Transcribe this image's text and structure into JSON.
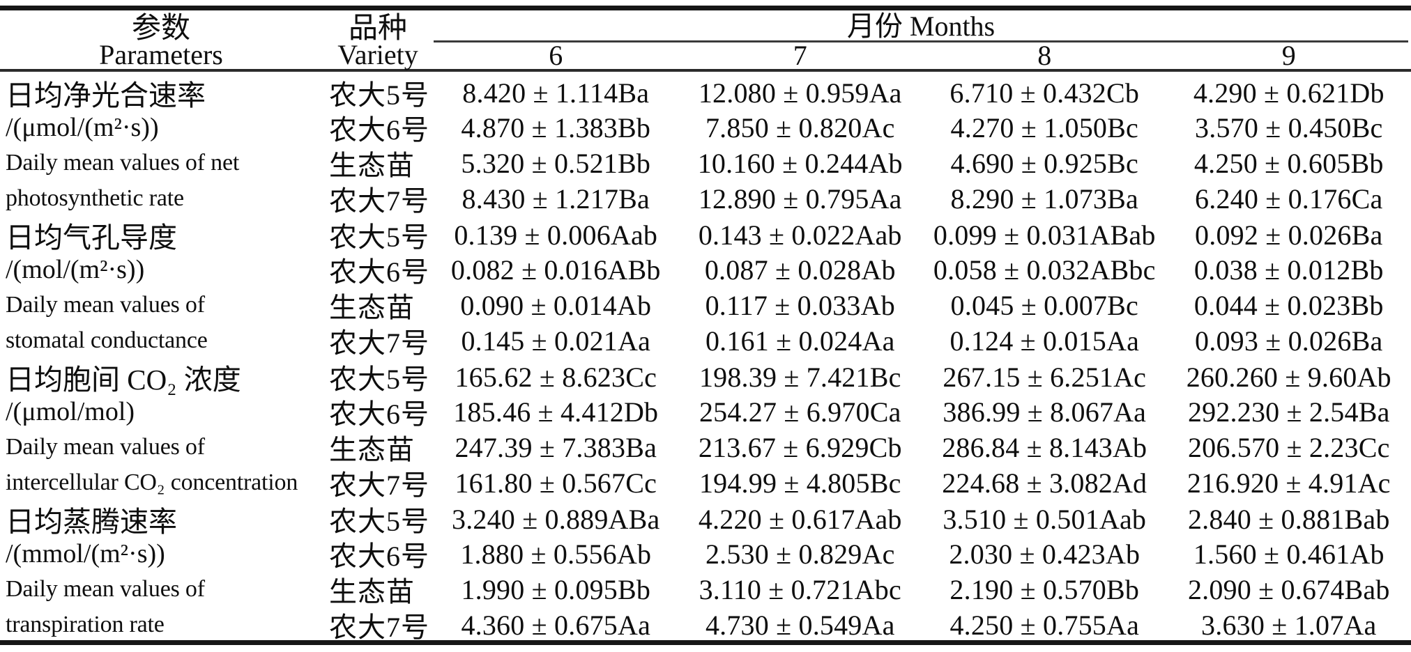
{
  "header": {
    "parameters_zh": "参数",
    "parameters_en": "Parameters",
    "variety_zh": "品种",
    "variety_en": "Variety",
    "months_label": "月份 Months",
    "months": [
      "6",
      "7",
      "8",
      "9"
    ]
  },
  "groups": [
    {
      "parameter_lines": [
        "日均净光合速率",
        "/(μmol/(m²·s))",
        "Daily mean values of net",
        "photosynthetic rate"
      ],
      "rows": [
        {
          "variety": "农大5号",
          "values": [
            "8.420 ± 1.114Ba",
            "12.080 ± 0.959Aa",
            "6.710 ± 0.432Cb",
            "4.290 ± 0.621Db"
          ]
        },
        {
          "variety": "农大6号",
          "values": [
            "4.870 ± 1.383Bb",
            "7.850 ± 0.820Ac",
            "4.270 ± 1.050Bc",
            "3.570 ± 0.450Bc"
          ]
        },
        {
          "variety": "生态苗",
          "values": [
            "5.320 ± 0.521Bb",
            "10.160 ± 0.244Ab",
            "4.690 ± 0.925Bc",
            "4.250 ± 0.605Bb"
          ]
        },
        {
          "variety": "农大7号",
          "values": [
            "8.430 ± 1.217Ba",
            "12.890 ± 0.795Aa",
            "8.290 ± 1.073Ba",
            "6.240 ± 0.176Ca"
          ]
        }
      ]
    },
    {
      "parameter_lines": [
        "日均气孔导度",
        "/(mol/(m²·s))",
        "Daily mean values of",
        "stomatal conductance"
      ],
      "rows": [
        {
          "variety": "农大5号",
          "values": [
            "0.139 ± 0.006Aab",
            "0.143 ± 0.022Aab",
            "0.099 ± 0.031ABab",
            "0.092 ± 0.026Ba"
          ]
        },
        {
          "variety": "农大6号",
          "values": [
            "0.082 ± 0.016ABb",
            "0.087 ± 0.028Ab",
            "0.058 ± 0.032ABbc",
            "0.038 ± 0.012Bb"
          ]
        },
        {
          "variety": "生态苗",
          "values": [
            "0.090 ± 0.014Ab",
            "0.117 ± 0.033Ab",
            "0.045 ± 0.007Bc",
            "0.044 ± 0.023Bb"
          ]
        },
        {
          "variety": "农大7号",
          "values": [
            "0.145 ± 0.021Aa",
            "0.161 ± 0.024Aa",
            "0.124 ± 0.015Aa",
            "0.093 ± 0.026Ba"
          ]
        }
      ]
    },
    {
      "parameter_lines": [
        "日均胞间 CO₂ 浓度",
        "/(μmol/mol)",
        "Daily mean values of",
        "intercellular CO₂ concentration"
      ],
      "rows": [
        {
          "variety": "农大5号",
          "values": [
            "165.62 ± 8.623Cc",
            "198.39 ± 7.421Bc",
            "267.15 ± 6.251Ac",
            "260.260 ± 9.60Ab"
          ]
        },
        {
          "variety": "农大6号",
          "values": [
            "185.46 ± 4.412Db",
            "254.27 ± 6.970Ca",
            "386.99 ± 8.067Aa",
            "292.230 ± 2.54Ba"
          ]
        },
        {
          "variety": "生态苗",
          "values": [
            "247.39 ± 7.383Ba",
            "213.67 ± 6.929Cb",
            "286.84 ± 8.143Ab",
            "206.570 ± 2.23Cc"
          ]
        },
        {
          "variety": "农大7号",
          "values": [
            "161.80 ± 0.567Cc",
            "194.99 ± 4.805Bc",
            "224.68 ± 3.082Ad",
            "216.920 ± 4.91Ac"
          ]
        }
      ]
    },
    {
      "parameter_lines": [
        "日均蒸腾速率",
        "/(mmol/(m²·s))",
        "Daily mean values of",
        "transpiration rate"
      ],
      "rows": [
        {
          "variety": "农大5号",
          "values": [
            "3.240 ± 0.889ABa",
            "4.220 ± 0.617Aab",
            "3.510 ± 0.501Aab",
            "2.840 ± 0.881Bab"
          ]
        },
        {
          "variety": "农大6号",
          "values": [
            "1.880 ± 0.556Ab",
            "2.530 ± 0.829Ac",
            "2.030 ± 0.423Ab",
            "1.560 ± 0.461Ab"
          ]
        },
        {
          "variety": "生态苗",
          "values": [
            "1.990 ± 0.095Bb",
            "3.110 ± 0.721Abc",
            "2.190 ± 0.570Bb",
            "2.090 ± 0.674Bab"
          ]
        },
        {
          "variety": "农大7号",
          "values": [
            "4.360 ± 0.675Aa",
            "4.730 ± 0.549Aa",
            "4.250 ± 0.755Aa",
            "3.630 ± 1.07Aa"
          ]
        }
      ]
    }
  ]
}
